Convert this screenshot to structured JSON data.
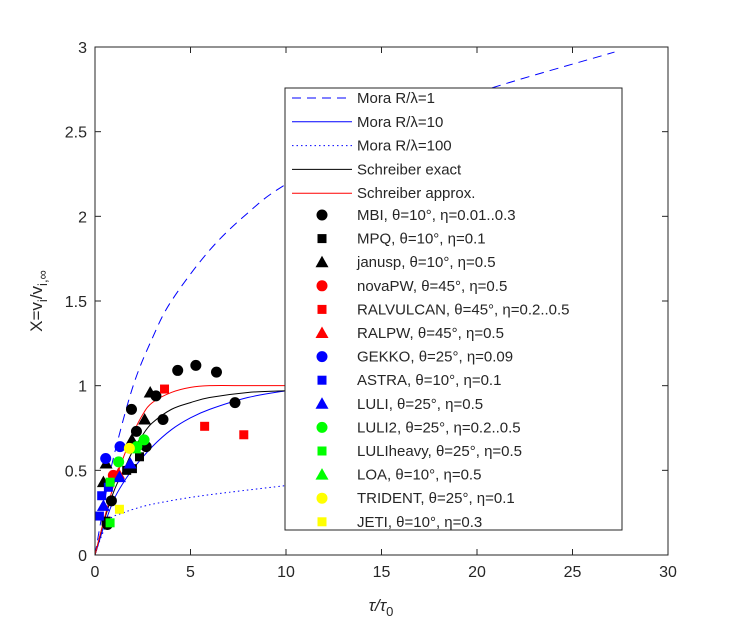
{
  "chart_data": {
    "type": "scatter",
    "xlabel": "τ/τ0",
    "xlabel_parts": {
      "main": "τ/τ",
      "sub": "0"
    },
    "ylabel": "X=vi/vi,∞",
    "ylabel_parts": {
      "a": "X=v",
      "s1": "i",
      "b": "/v",
      "s2": "i,∞"
    },
    "xlim": [
      0,
      30
    ],
    "ylim": [
      0,
      3
    ],
    "xticks": [
      "0",
      "5",
      "10",
      "15",
      "20",
      "25",
      "30"
    ],
    "yticks": [
      "0",
      "0.5",
      "1",
      "1.5",
      "2",
      "2.5",
      "3"
    ],
    "grid": false,
    "legend_placement": "center-right",
    "lines": [
      {
        "name": "Mora R/λ=1",
        "color": "#0000ff",
        "style": "dashed",
        "x": [
          0,
          0.5,
          1,
          2,
          3,
          4,
          6,
          8,
          10,
          15,
          20,
          27.2
        ],
        "y": [
          0,
          0.32,
          0.59,
          1.0,
          1.28,
          1.5,
          1.8,
          2.02,
          2.19,
          2.51,
          2.73,
          2.97
        ]
      },
      {
        "name": "Mora R/λ=10",
        "color": "#0000ff",
        "style": "solid",
        "x": [
          0,
          0.5,
          1,
          1.5,
          2,
          3,
          4,
          5,
          6,
          8,
          10
        ],
        "y": [
          0,
          0.18,
          0.33,
          0.43,
          0.51,
          0.64,
          0.74,
          0.81,
          0.86,
          0.93,
          0.97
        ]
      },
      {
        "name": "Mora R/λ=100",
        "color": "#0000ff",
        "style": "dotted",
        "x": [
          0,
          0.3,
          0.7,
          1,
          1.5,
          2,
          3,
          5,
          7,
          10
        ],
        "y": [
          0,
          0.1,
          0.2,
          0.23,
          0.25,
          0.27,
          0.3,
          0.34,
          0.37,
          0.41
        ]
      },
      {
        "name": "Schreiber exact",
        "color": "#000000",
        "style": "solid",
        "x": [
          0,
          0.5,
          1,
          1.5,
          2,
          2.5,
          3,
          4,
          5,
          6,
          8,
          10
        ],
        "y": [
          0,
          0.21,
          0.38,
          0.5,
          0.62,
          0.71,
          0.78,
          0.86,
          0.9,
          0.93,
          0.96,
          0.97
        ]
      },
      {
        "name": "Schreiber approx.",
        "color": "#ff0000",
        "style": "solid",
        "x": [
          0,
          0.5,
          1,
          1.5,
          2,
          2.5,
          3,
          4,
          5,
          6,
          8,
          10
        ],
        "y": [
          0,
          0.22,
          0.42,
          0.58,
          0.72,
          0.83,
          0.9,
          0.96,
          0.99,
          1.0,
          1.0,
          1.0
        ]
      }
    ],
    "series": [
      {
        "name": "MBI",
        "params": ", θ=10°, η=0.01..0.3",
        "marker": "circle",
        "color": "#000000",
        "x": [
          4.33,
          5.28,
          6.36,
          7.33,
          3.19,
          1.91,
          3.56,
          2.17,
          2.68,
          0.86,
          0.65
        ],
        "y": [
          1.09,
          1.12,
          1.08,
          0.9,
          0.94,
          0.86,
          0.8,
          0.73,
          0.64,
          0.32,
          0.18
        ]
      },
      {
        "name": "MPQ",
        "params": ", θ=10°, η=0.1",
        "marker": "square",
        "color": "#000000",
        "x": [
          2.33,
          1.96,
          1.66,
          0.58
        ],
        "y": [
          0.58,
          0.51,
          0.5,
          0.2
        ]
      },
      {
        "name": "janusp",
        "params": ", θ=10°, η=0.5",
        "marker": "triangle",
        "color": "#000000",
        "x": [
          2.89,
          2.6,
          0.44,
          0.58,
          1.93
        ],
        "y": [
          0.96,
          0.8,
          0.43,
          0.54,
          0.68
        ]
      },
      {
        "name": "novaPW",
        "params": ", θ=45°, η=0.5",
        "marker": "circle",
        "color": "#ff0000",
        "x": [
          0.96
        ],
        "y": [
          0.47
        ]
      },
      {
        "name": "RALVULCAN",
        "params": ", θ=45°, η=0.2..0.5",
        "marker": "square",
        "color": "#ff0000",
        "x": [
          3.64,
          5.74,
          7.79
        ],
        "y": [
          0.98,
          0.76,
          0.71
        ]
      },
      {
        "name": "RALPW",
        "params": ", θ=45°, η=0.5",
        "marker": "triangle",
        "color": "#ff0000",
        "x": [
          1.23
        ],
        "y": [
          0.48
        ]
      },
      {
        "name": "GEKKO",
        "params": ", θ=25°, η=0.09",
        "marker": "circle",
        "color": "#0000ff",
        "x": [
          0.56,
          1.31
        ],
        "y": [
          0.57,
          0.64
        ]
      },
      {
        "name": "ASTRA",
        "params": ", θ=10°, η=0.1",
        "marker": "square",
        "color": "#0000ff",
        "x": [
          0.23,
          0.35,
          0.7
        ],
        "y": [
          0.23,
          0.35,
          0.4
        ]
      },
      {
        "name": "LULI",
        "params": ", θ=25°, η=0.5",
        "marker": "triangle",
        "color": "#0000ff",
        "x": [
          1.84,
          1.28,
          0.44
        ],
        "y": [
          0.54,
          0.46,
          0.29
        ]
      },
      {
        "name": "LULI2",
        "params": ", θ=25°, η=0.2..0.5",
        "marker": "circle",
        "color": "#00ff00",
        "x": [
          2.57,
          2.19,
          1.24
        ],
        "y": [
          0.68,
          0.64,
          0.55
        ]
      },
      {
        "name": "LULIheavy",
        "params": ", θ=25°, η=0.5",
        "marker": "square",
        "color": "#00ff00",
        "x": [
          0.79,
          0.79
        ],
        "y": [
          0.43,
          0.19
        ]
      },
      {
        "name": "LOA",
        "params": ", θ=10°, η=0.5",
        "marker": "triangle",
        "color": "#00ff00",
        "x": [
          2.1
        ],
        "y": [
          0.63
        ]
      },
      {
        "name": "TRIDENT",
        "params": ", θ=25°, η=0.1",
        "marker": "circle",
        "color": "#ffff00",
        "x": [
          1.8
        ],
        "y": [
          0.63
        ]
      },
      {
        "name": "JETI",
        "params": ", θ=10°, η=0.3",
        "marker": "square",
        "color": "#ffff00",
        "x": [
          1.28
        ],
        "y": [
          0.27
        ]
      }
    ]
  }
}
